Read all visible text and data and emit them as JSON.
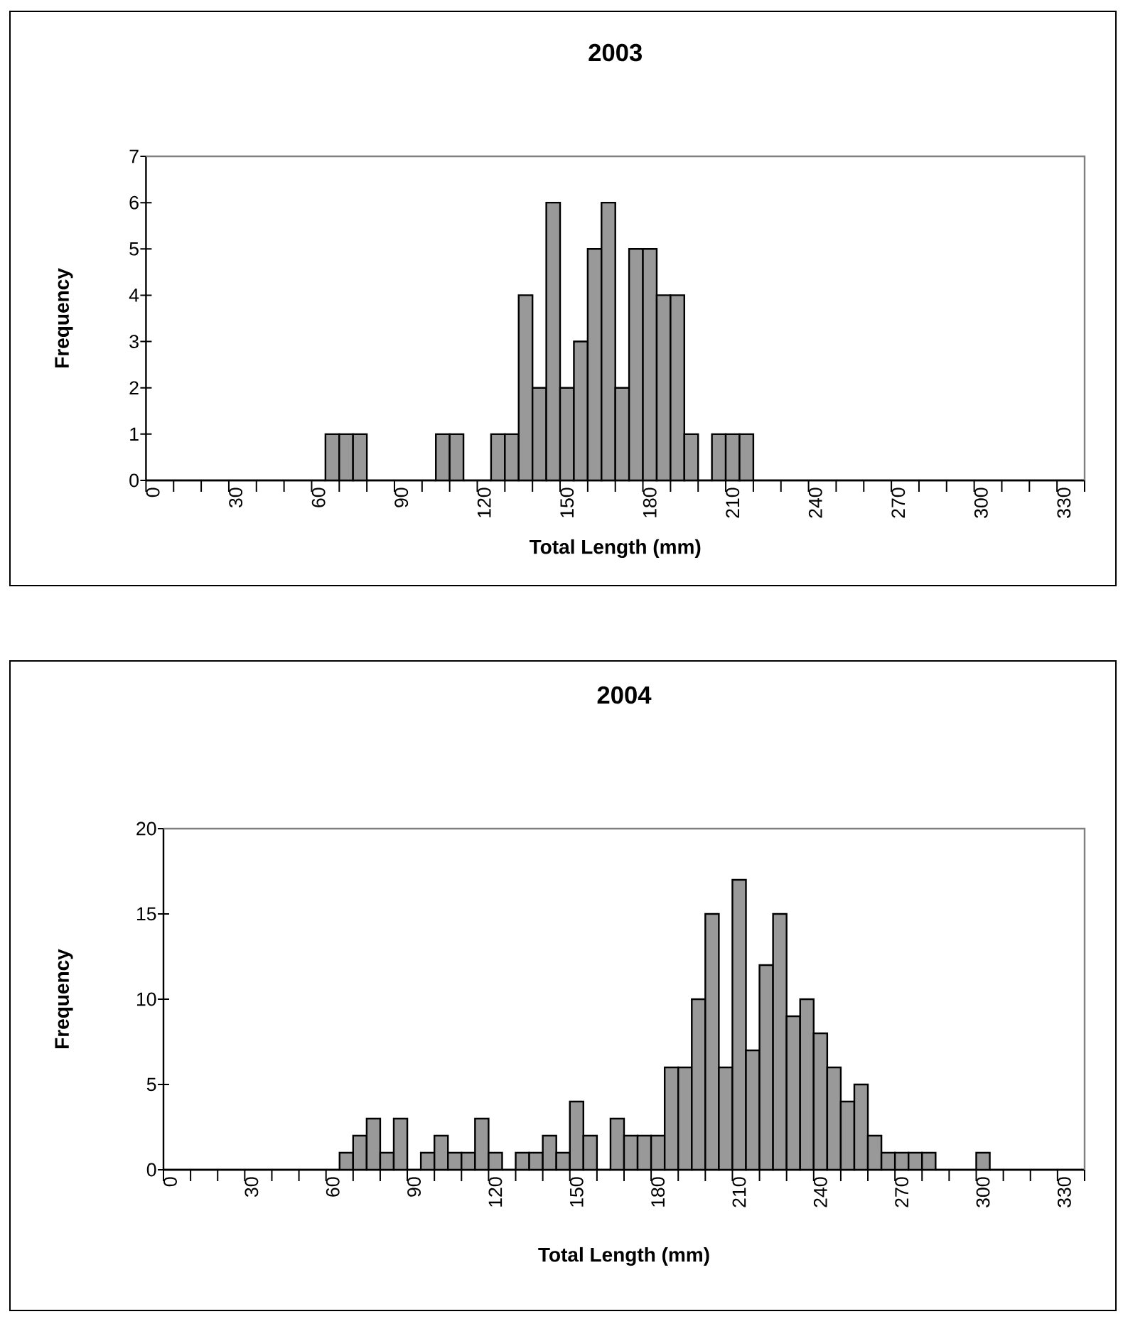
{
  "chart_data": [
    {
      "type": "bar",
      "title": "2003",
      "xlabel": "Total Length (mm)",
      "ylabel": "Frequency",
      "color": "#999999",
      "categories": [
        "0",
        null,
        null,
        null,
        null,
        null,
        "30",
        null,
        null,
        null,
        null,
        null,
        "60",
        null,
        null,
        null,
        null,
        null,
        "90",
        null,
        null,
        null,
        null,
        null,
        "120",
        null,
        null,
        null,
        null,
        null,
        "150",
        null,
        null,
        null,
        null,
        null,
        "180",
        null,
        null,
        null,
        null,
        null,
        "210",
        null,
        null,
        null,
        null,
        null,
        "240",
        null,
        null,
        null,
        null,
        null,
        "270",
        null,
        null,
        null,
        null,
        null,
        "300",
        null,
        null,
        null,
        null,
        null,
        "330",
        null
      ],
      "values": [
        0,
        0,
        0,
        0,
        0,
        0,
        0,
        0,
        0,
        0,
        0,
        0,
        0,
        1,
        1,
        1,
        0,
        0,
        0,
        0,
        0,
        1,
        1,
        0,
        0,
        1,
        1,
        4,
        2,
        6,
        2,
        3,
        5,
        6,
        2,
        5,
        5,
        4,
        4,
        1,
        0,
        1,
        1,
        1,
        0,
        0,
        0,
        0,
        0,
        0,
        0,
        0,
        0,
        0,
        0,
        0,
        0,
        0,
        0,
        0,
        0,
        0,
        0,
        0,
        0,
        0,
        0,
        0
      ],
      "ylim": [
        0,
        7
      ],
      "yticks": [
        0,
        1,
        2,
        3,
        4,
        5,
        6,
        7
      ]
    },
    {
      "type": "bar",
      "title": "2004",
      "xlabel": "Total Length (mm)",
      "ylabel": "Frequency",
      "color": "#999999",
      "categories": [
        "0",
        null,
        null,
        null,
        null,
        null,
        "30",
        null,
        null,
        null,
        null,
        null,
        "60",
        null,
        null,
        null,
        null,
        null,
        "90",
        null,
        null,
        null,
        null,
        null,
        "120",
        null,
        null,
        null,
        null,
        null,
        "150",
        null,
        null,
        null,
        null,
        null,
        "180",
        null,
        null,
        null,
        null,
        null,
        "210",
        null,
        null,
        null,
        null,
        null,
        "240",
        null,
        null,
        null,
        null,
        null,
        "270",
        null,
        null,
        null,
        null,
        null,
        "300",
        null,
        null,
        null,
        null,
        null,
        "330",
        null
      ],
      "values": [
        0,
        0,
        0,
        0,
        0,
        0,
        0,
        0,
        0,
        0,
        0,
        0,
        0,
        1,
        2,
        3,
        1,
        3,
        0,
        1,
        2,
        1,
        1,
        3,
        1,
        0,
        1,
        1,
        2,
        1,
        4,
        2,
        0,
        3,
        2,
        2,
        2,
        6,
        6,
        10,
        15,
        6,
        17,
        7,
        12,
        15,
        9,
        10,
        8,
        6,
        4,
        5,
        2,
        1,
        1,
        1,
        1,
        0,
        0,
        0,
        1,
        0,
        0,
        0,
        0,
        0,
        0,
        0
      ],
      "ylim": [
        0,
        20
      ],
      "yticks": [
        0,
        5,
        10,
        15,
        20
      ]
    }
  ]
}
